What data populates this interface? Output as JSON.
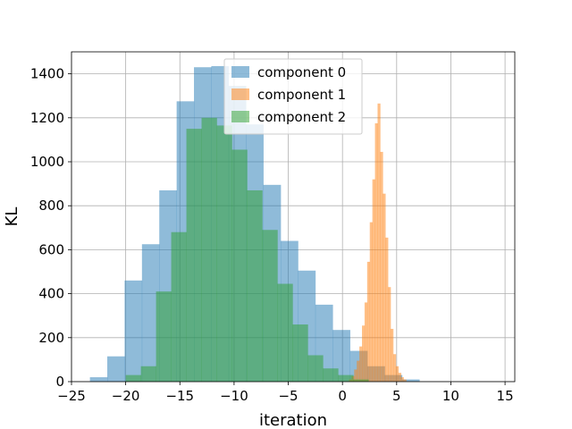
{
  "chart_data": {
    "type": "bar",
    "title": "",
    "xlabel": "iteration",
    "ylabel": "KL",
    "xlim": [
      -25,
      15.9
    ],
    "ylim": [
      0,
      1500
    ],
    "xticks": [
      -25,
      -20,
      -15,
      -10,
      -5,
      0,
      5,
      10,
      15
    ],
    "yticks": [
      0,
      200,
      400,
      600,
      800,
      1000,
      1200,
      1400
    ],
    "grid": true,
    "legend_placement": "upper-center",
    "bar_opacity": 0.5,
    "series": [
      {
        "name": "component 0",
        "color": "#1f77b4",
        "bin_width": 1.6,
        "bins_start": [
          -23.3,
          -21.7,
          -20.1,
          -18.5,
          -16.9,
          -15.3,
          -13.7,
          -12.1,
          -10.5,
          -8.9,
          -7.3,
          -5.7,
          -4.1,
          -2.5,
          -0.9,
          0.7,
          2.3,
          3.9,
          5.5
        ],
        "counts": [
          20,
          115,
          460,
          625,
          870,
          1275,
          1430,
          1435,
          1345,
          1170,
          895,
          640,
          505,
          350,
          235,
          140,
          70,
          30,
          10
        ]
      },
      {
        "name": "component 1",
        "color": "#ff7f0e",
        "bin_width": 0.24,
        "bins_start": [
          0.6,
          0.84,
          1.08,
          1.32,
          1.56,
          1.8,
          2.04,
          2.28,
          2.52,
          2.76,
          3.0,
          3.24,
          3.48,
          3.72,
          3.96,
          4.2,
          4.44,
          4.68,
          4.92,
          5.16,
          5.4,
          5.64
        ],
        "counts": [
          10,
          25,
          55,
          95,
          160,
          255,
          360,
          545,
          725,
          920,
          1175,
          1265,
          1045,
          855,
          655,
          430,
          240,
          125,
          70,
          40,
          20,
          10
        ]
      },
      {
        "name": "component 2",
        "color": "#2ca02c",
        "bin_width": 1.4,
        "bins_start": [
          -20.0,
          -18.6,
          -17.2,
          -15.8,
          -14.4,
          -13.0,
          -11.6,
          -10.2,
          -8.8,
          -7.4,
          -6.0,
          -4.6,
          -3.2,
          -1.8,
          -0.4,
          1.0
        ],
        "counts": [
          30,
          70,
          410,
          680,
          1150,
          1200,
          1165,
          1055,
          870,
          690,
          445,
          260,
          120,
          60,
          30,
          10
        ]
      }
    ]
  }
}
